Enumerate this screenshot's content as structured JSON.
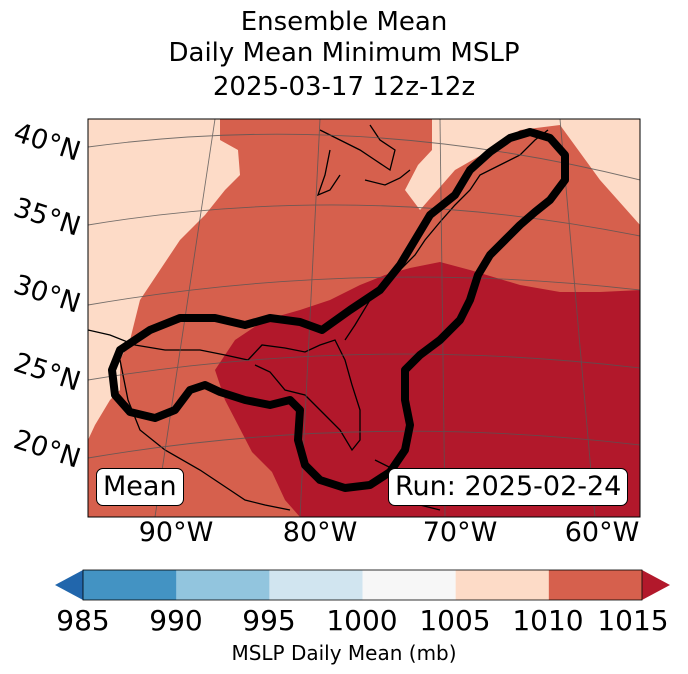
{
  "title": {
    "line1": "Ensemble Mean",
    "line2": "Daily Mean Minimum MSLP",
    "line3": "2025-03-17 12z-12z"
  },
  "map": {
    "lat_labels": [
      "40°N",
      "35°N",
      "30°N",
      "25°N",
      "20°N"
    ],
    "lon_labels": [
      "90°W",
      "80°W",
      "70°W",
      "60°W"
    ],
    "mean_label": "Mean",
    "run_label": "Run: 2025-02-24",
    "colors": {
      "lt1010": "#d6604d",
      "lt1015": "#fddbc7",
      "lt1005": "#b2182b",
      "outline": "#000000"
    }
  },
  "colorbar": {
    "ticks": [
      "985",
      "990",
      "995",
      "1000",
      "1005",
      "1010",
      "1015"
    ],
    "label": "MSLP Daily Mean (mb)",
    "colors": [
      "#2166ac",
      "#4393c3",
      "#92c5de",
      "#d1e5f0",
      "#f7f7f7",
      "#fddbc7",
      "#d6604d",
      "#b2182b"
    ]
  }
}
